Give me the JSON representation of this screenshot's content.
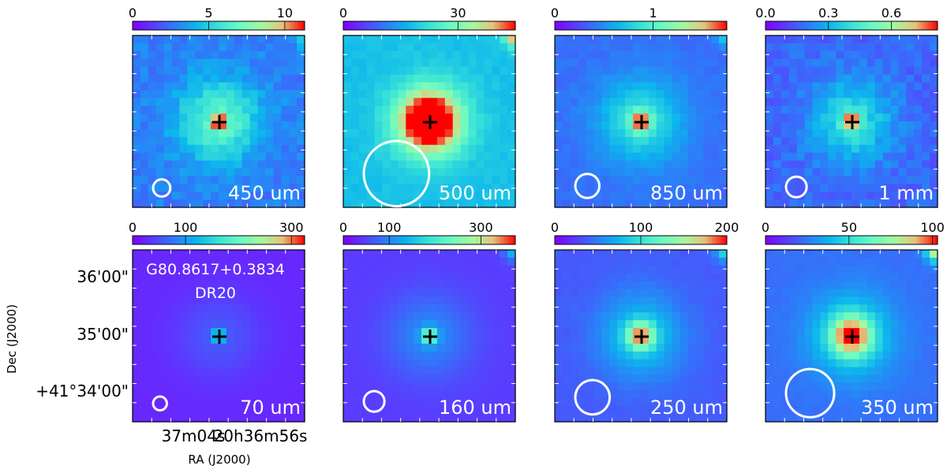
{
  "chart_data": {
    "type": "image-grid",
    "source": {
      "name": "G80.8617+0.3834",
      "label": "DR20"
    },
    "axis_labels": {
      "x": "RA (J2000)",
      "y": "Dec (J2000)"
    },
    "ra_ticks": [
      "37m04s",
      "20h36m56s"
    ],
    "dec_ticks": [
      "36'00\"",
      "35'00\"",
      "+41°34'00\""
    ],
    "colormap": "rainbow",
    "panels": [
      {
        "id": "450um",
        "label": "450 um",
        "cb_ticks": [
          0,
          5,
          10
        ],
        "cb_labels": [
          "0",
          "5",
          "10"
        ],
        "vmax": 11.3,
        "beam": 0.05,
        "bg": 0.25,
        "blob": 0.35,
        "peak": 0.62,
        "noise": 0.05,
        "corner": 0.28
      },
      {
        "id": "500um",
        "label": "500 um",
        "cb_ticks": [
          0,
          30
        ],
        "cb_labels": [
          "0",
          "30"
        ],
        "vmax": 45,
        "beam": 0.19,
        "bg": 0.4,
        "blob": 0.28,
        "peak": 0.76,
        "noise": 0.02,
        "corner": 0.58
      },
      {
        "id": "850um",
        "label": "850 um",
        "cb_ticks": [
          0,
          1
        ],
        "cb_labels": [
          "0",
          "1"
        ],
        "vmax": 1.75,
        "beam": 0.07,
        "bg": 0.22,
        "blob": 0.3,
        "peak": 0.56,
        "noise": 0.02,
        "corner": 0.25
      },
      {
        "id": "1mm",
        "label": "1 mm",
        "cb_ticks": [
          0.0,
          0.3,
          0.6
        ],
        "cb_labels": [
          "0.0",
          "0.3",
          "0.6"
        ],
        "vmax": 0.82,
        "beam": 0.06,
        "bg": 0.2,
        "blob": 0.3,
        "peak": 0.6,
        "noise": 0.05,
        "corner": 0.1
      },
      {
        "id": "70um",
        "label": "70 um",
        "cb_ticks": [
          0,
          100,
          300
        ],
        "cb_labels": [
          "0",
          "100",
          "300"
        ],
        "vmax": 325,
        "beam": 0.04,
        "bg": 0.08,
        "blob": 0.1,
        "peak": 0.55,
        "noise": 0.0,
        "corner": 0.0
      },
      {
        "id": "160um",
        "label": "160 um",
        "cb_ticks": [
          0,
          100,
          300
        ],
        "cb_labels": [
          "0",
          "100",
          "300"
        ],
        "vmax": 375,
        "beam": 0.06,
        "bg": 0.12,
        "blob": 0.16,
        "peak": 0.45,
        "noise": 0.0,
        "corner": 0.3
      },
      {
        "id": "250um",
        "label": "250 um",
        "cb_ticks": [
          0,
          100,
          200
        ],
        "cb_labels": [
          "0",
          "100",
          "200"
        ],
        "vmax": 200,
        "beam": 0.1,
        "bg": 0.18,
        "blob": 0.25,
        "peak": 0.55,
        "noise": 0.01,
        "corner": 0.35
      },
      {
        "id": "350um",
        "label": "350 um",
        "cb_ticks": [
          0,
          50,
          100
        ],
        "cb_labels": [
          "0",
          "50",
          "100"
        ],
        "vmax": 103,
        "beam": 0.14,
        "bg": 0.22,
        "blob": 0.28,
        "peak": 0.62,
        "noise": 0.01,
        "corner": 0.7
      }
    ]
  }
}
